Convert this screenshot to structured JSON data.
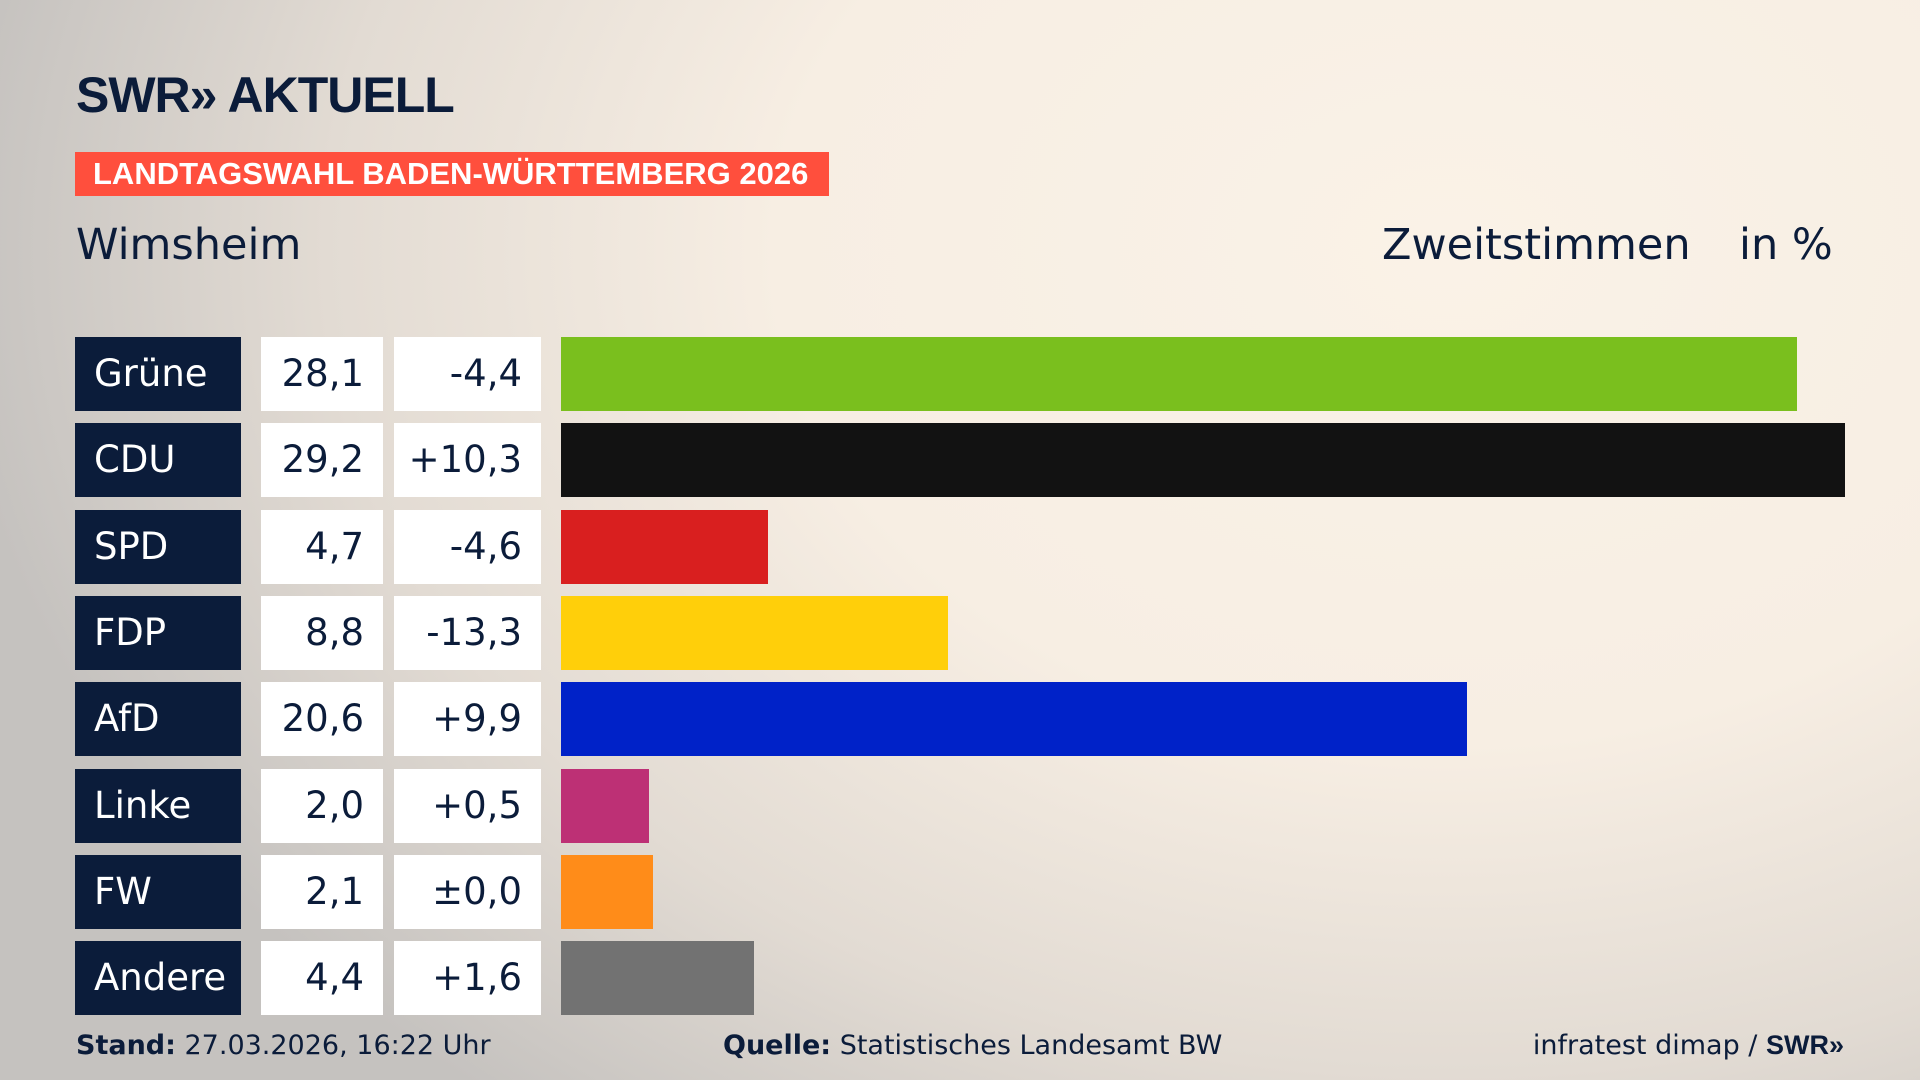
{
  "header": {
    "logo": "SWR» AKTUELL",
    "banner": "LANDTAGSWAHL BADEN-WÜRTTEMBERG 2026",
    "place": "Wimsheim",
    "measure": "Zweitstimmen",
    "unit": "in %"
  },
  "chart_data": {
    "type": "bar",
    "orientation": "horizontal",
    "categories": [
      "Grüne",
      "CDU",
      "SPD",
      "FDP",
      "AfD",
      "Linke",
      "FW",
      "Andere"
    ],
    "values": [
      28.1,
      29.2,
      4.7,
      8.8,
      20.6,
      2.0,
      2.1,
      4.4
    ],
    "value_labels": [
      "28,1",
      "29,2",
      "4,7",
      "8,8",
      "20,6",
      "2,0",
      "2,1",
      "4,4"
    ],
    "change_labels": [
      "-4,4",
      "+10,3",
      "-4,6",
      "-13,3",
      "+9,9",
      "+0,5",
      "±0,0",
      "+1,6"
    ],
    "colors": [
      "#7abf1e",
      "#121212",
      "#d91f1f",
      "#ffcf0a",
      "#0022c8",
      "#bd3075",
      "#ff8c19",
      "#727272"
    ],
    "xlim": [
      0,
      29.2
    ]
  },
  "footer": {
    "stand_label": "Stand:",
    "stand_value": " 27.03.2026, 16:22 Uhr",
    "source_label": "Quelle:",
    "source_value": " Statistisches Landesamt BW",
    "credit": "infratest dimap / ",
    "credit_logo": "SWR»"
  }
}
